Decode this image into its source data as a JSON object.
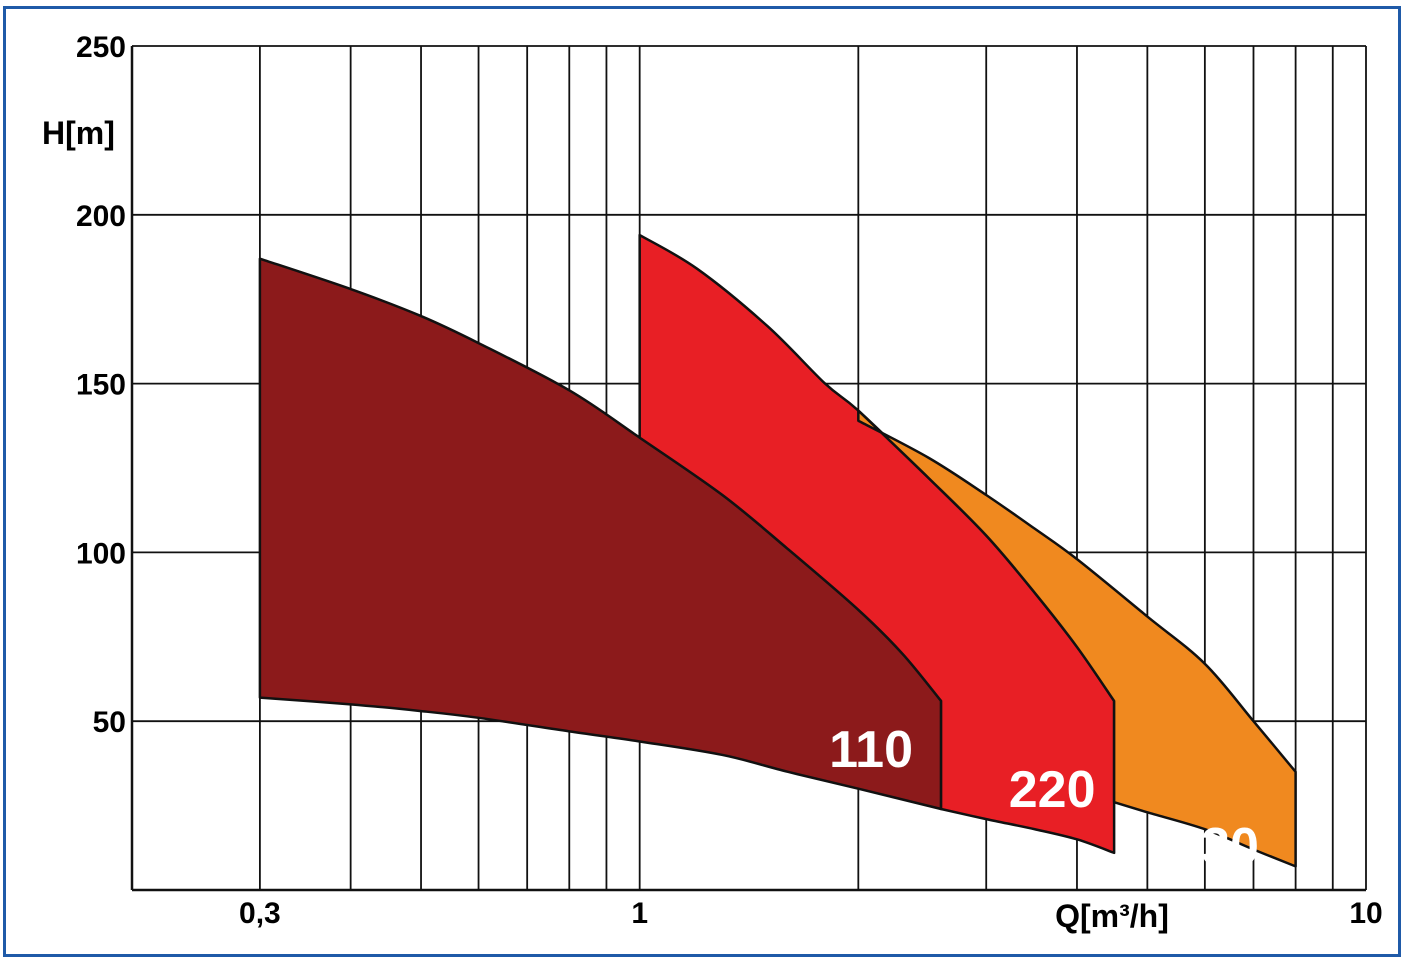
{
  "chart_data": {
    "type": "area",
    "xscale": "log",
    "xlim": [
      0.2,
      10
    ],
    "ylim": [
      0,
      250
    ],
    "grid": true,
    "xlabel": "Q[m³/h]",
    "ylabel": "H[m]",
    "x_tick_labels": [
      {
        "value": 0.3,
        "label": "0,3"
      },
      {
        "value": 1,
        "label": "1"
      },
      {
        "value": 10,
        "label": "10"
      }
    ],
    "y_ticks": [
      50,
      100,
      150,
      200,
      250
    ],
    "x_minor_grid": [
      0.2,
      0.3,
      0.4,
      0.5,
      0.6,
      0.7,
      0.8,
      0.9,
      1,
      2,
      3,
      4,
      5,
      6,
      7,
      8,
      9,
      10
    ],
    "series": [
      {
        "name": "110",
        "color": "#8c1a1b",
        "x_range": [
          0.3,
          2.6
        ],
        "upper": [
          [
            0.3,
            187
          ],
          [
            0.4,
            178
          ],
          [
            0.5,
            170
          ],
          [
            0.6,
            162
          ],
          [
            0.8,
            148
          ],
          [
            1.0,
            134
          ],
          [
            1.3,
            117
          ],
          [
            1.6,
            101
          ],
          [
            2.0,
            83
          ],
          [
            2.3,
            70
          ],
          [
            2.6,
            56
          ]
        ],
        "lower": [
          [
            0.3,
            57
          ],
          [
            0.4,
            55
          ],
          [
            0.5,
            53
          ],
          [
            0.6,
            51
          ],
          [
            0.8,
            47
          ],
          [
            1.0,
            44
          ],
          [
            1.3,
            40
          ],
          [
            1.6,
            35
          ],
          [
            2.0,
            30
          ],
          [
            2.6,
            24
          ]
        ]
      },
      {
        "name": "220",
        "color": "#e81f25",
        "x_range": [
          1.0,
          4.5
        ],
        "upper": [
          [
            1.0,
            194
          ],
          [
            1.2,
            184
          ],
          [
            1.5,
            167
          ],
          [
            1.8,
            150
          ],
          [
            2.0,
            142
          ],
          [
            2.5,
            122
          ],
          [
            3.0,
            105
          ],
          [
            3.5,
            88
          ],
          [
            4.0,
            72
          ],
          [
            4.5,
            56
          ]
        ],
        "lower": [
          [
            2.6,
            24
          ],
          [
            3.0,
            21
          ],
          [
            3.5,
            18
          ],
          [
            4.0,
            15
          ],
          [
            4.5,
            11
          ]
        ]
      },
      {
        "name": "330",
        "color": "#f0891f",
        "x_range": [
          2.0,
          8.0
        ],
        "upper": [
          [
            2.0,
            139
          ],
          [
            2.5,
            128
          ],
          [
            3.0,
            117
          ],
          [
            3.5,
            107
          ],
          [
            4.0,
            98
          ],
          [
            5.0,
            81
          ],
          [
            6.0,
            67
          ],
          [
            7.0,
            50
          ],
          [
            8.0,
            35
          ]
        ],
        "lower": [
          [
            4.5,
            26
          ],
          [
            5.0,
            23
          ],
          [
            6.0,
            18
          ],
          [
            7.0,
            12
          ],
          [
            8.0,
            7
          ]
        ]
      }
    ]
  }
}
